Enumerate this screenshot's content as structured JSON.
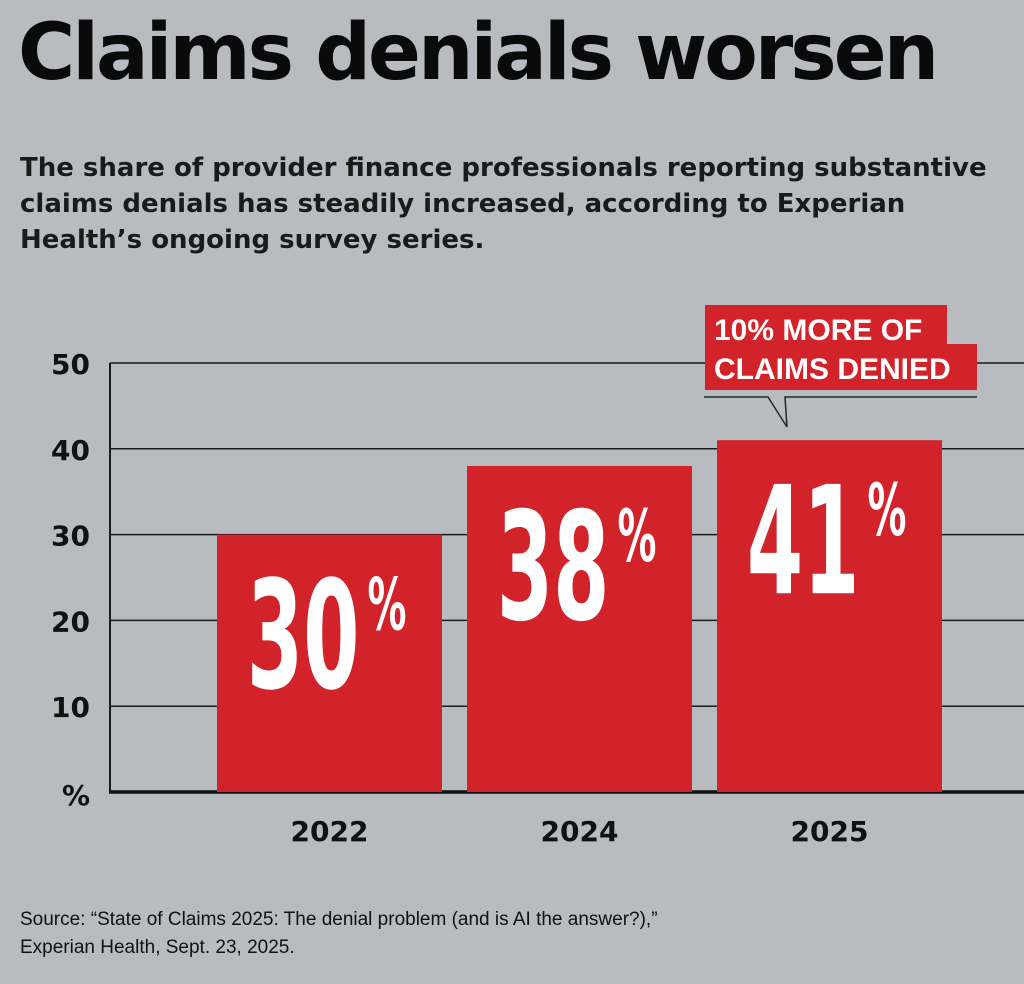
{
  "title": "Claims denials worsen",
  "subtitle": "The share of provider finance professionals reporting substantive claims denials has steadily increased, according to Experian Health’s ongoing survey series.",
  "source": [
    "Source: “State of Claims 2025: The denial problem (and is AI the answer?),”",
    "Experian Health, Sept. 23, 2025."
  ],
  "chart_data": {
    "type": "bar",
    "categories": [
      "2022",
      "2024",
      "2025"
    ],
    "values": [
      30,
      38,
      41
    ],
    "data_labels": [
      "30",
      "38",
      "41"
    ],
    "data_label_suffix": "%",
    "ylabel": "%",
    "ylim": [
      0,
      50
    ],
    "yticks": [
      10,
      20,
      30,
      40,
      50
    ],
    "grid": true,
    "annotation": {
      "lines": [
        "10% MORE OF",
        "CLAIMS DENIED"
      ],
      "target": "2025"
    },
    "colors": {
      "bar": "#d2232a",
      "background": "#b8bcc1",
      "text": "#111111"
    }
  }
}
